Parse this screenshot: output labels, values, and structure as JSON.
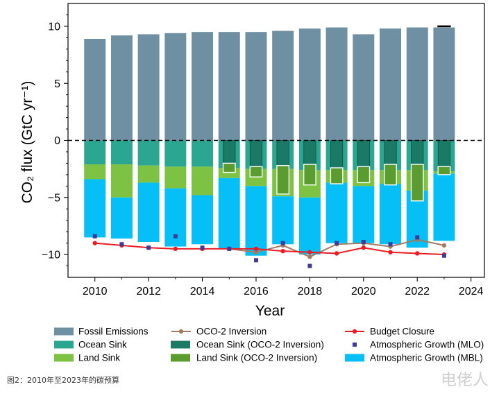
{
  "chart_data": {
    "type": "bar",
    "stacked": true,
    "xlabel": "Year",
    "ylabel": "CO₂ flux (GtC yr⁻¹)",
    "xlim": [
      2009,
      2024.5
    ],
    "ylim": [
      -12,
      12
    ],
    "xticks": [
      2010,
      2012,
      2014,
      2016,
      2018,
      2020,
      2022,
      2024
    ],
    "xtick_labels": [
      "2010",
      "2012",
      "2014",
      "2016",
      "2018",
      "2020",
      "2022",
      "2024"
    ],
    "yticks": [
      -10,
      -5,
      0,
      5,
      10
    ],
    "ytick_labels": [
      "−10",
      "−5",
      "0",
      "5",
      "10"
    ],
    "grid": false,
    "reference_line": {
      "y": 0,
      "style": "dashed",
      "color": "#000000"
    },
    "x": [
      2010,
      2011,
      2012,
      2013,
      2014,
      2015,
      2016,
      2017,
      2018,
      2019,
      2020,
      2021,
      2022,
      2023
    ],
    "bar_series": [
      {
        "name": "Fossil Emissions",
        "color": "#6f8fa3",
        "values": [
          8.9,
          9.2,
          9.3,
          9.4,
          9.5,
          9.5,
          9.5,
          9.6,
          9.8,
          9.9,
          9.3,
          9.8,
          9.9,
          9.9
        ]
      },
      {
        "name": "Ocean Sink",
        "color": "#2ba690",
        "values": [
          -2.1,
          -2.1,
          -2.2,
          -2.3,
          -2.3,
          -2.4,
          -2.5,
          -2.5,
          -2.6,
          -2.6,
          -2.6,
          -2.6,
          -2.6,
          -2.7
        ]
      },
      {
        "name": "Land Sink",
        "color": "#7dc242",
        "values": [
          -1.3,
          -2.9,
          -1.5,
          -1.9,
          -2.5,
          -0.9,
          -1.5,
          -2.4,
          -2.4,
          -1.1,
          -1.4,
          -1.2,
          -1.8,
          -0.2
        ]
      },
      {
        "name": "Atmospheric Growth (MBL)",
        "color": "#05bff6",
        "values": [
          -5.1,
          -3.6,
          -5.2,
          -5.1,
          -4.3,
          -6.2,
          -6.1,
          -4.2,
          -5.0,
          -5.3,
          -5.0,
          -5.3,
          -5.0,
          -5.9
        ]
      }
    ],
    "inversion_x": [
      2015,
      2016,
      2017,
      2018,
      2019,
      2020,
      2021,
      2022,
      2023
    ],
    "inversion_bar_series": [
      {
        "name": "Ocean Sink (OCO-2 Inversion)",
        "color": "#1a7a66",
        "values": [
          -2.0,
          -2.3,
          -2.2,
          -2.1,
          -2.4,
          -2.3,
          -2.1,
          -2.1,
          -2.3
        ]
      },
      {
        "name": "Land Sink (OCO-2 Inversion)",
        "color": "#5a9c2f",
        "values": [
          -0.8,
          -0.9,
          -2.5,
          -1.8,
          -1.4,
          -1.4,
          -1.8,
          -3.2,
          -0.7
        ]
      }
    ],
    "fossil_top_mark": {
      "x": 2023,
      "y": 10.0,
      "color": "#000000"
    },
    "line_series": [
      {
        "name": "OCO-2 Inversion",
        "color": "#a17b62",
        "x": [
          2015,
          2016,
          2017,
          2018,
          2019,
          2020,
          2021,
          2022,
          2023
        ],
        "values": [
          -9.5,
          -9.8,
          -9.2,
          -10.2,
          -9.1,
          -9.0,
          -9.3,
          -8.7,
          -9.2
        ]
      },
      {
        "name": "Budget Closure",
        "color": "#ec1c24",
        "x": [
          2010,
          2011,
          2012,
          2013,
          2014,
          2015,
          2016,
          2017,
          2018,
          2019,
          2020,
          2021,
          2022,
          2023
        ],
        "values": [
          -9.0,
          -9.2,
          -9.4,
          -9.5,
          -9.5,
          -9.5,
          -9.5,
          -9.7,
          -9.8,
          -9.9,
          -9.4,
          -9.8,
          -9.9,
          -10.0
        ]
      }
    ],
    "scatter_series": [
      {
        "name": "Atmospheric Growth (MLO)",
        "color": "#3e3c96",
        "marker": "square",
        "x": [
          2010,
          2011,
          2012,
          2013,
          2014,
          2015,
          2016,
          2017,
          2018,
          2019,
          2020,
          2021,
          2022,
          2023
        ],
        "values": [
          -8.4,
          -9.1,
          -9.4,
          -8.4,
          -9.4,
          -9.5,
          -10.5,
          -9.0,
          -11.0,
          -9.0,
          -8.9,
          -9.1,
          -8.5,
          -10.1
        ]
      }
    ],
    "legend": {
      "placement": "bottom",
      "columns": 3
    }
  },
  "caption": "图2：2010年至2023年的碳预算",
  "watermark": "电佬人"
}
